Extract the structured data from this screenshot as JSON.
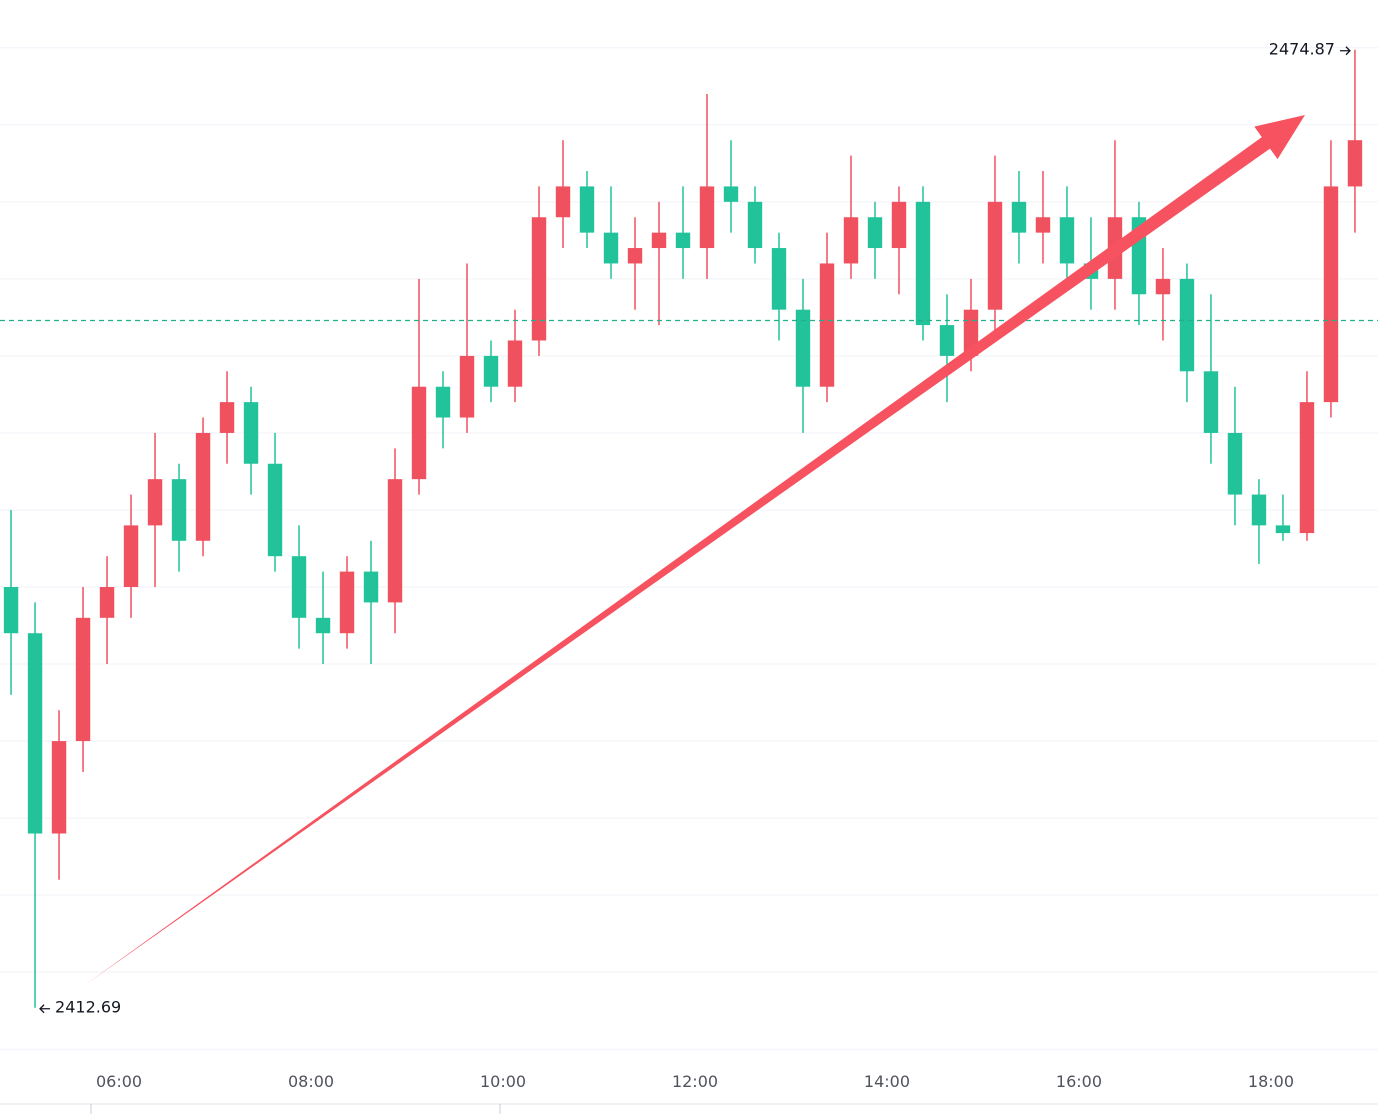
{
  "chart_data": {
    "type": "candlestick",
    "x": [
      4.75,
      5,
      5.25,
      5.5,
      5.75,
      6,
      6.25,
      6.5,
      6.75,
      7,
      7.25,
      7.5,
      7.75,
      8,
      8.25,
      8.5,
      8.75,
      9,
      9.25,
      9.5,
      9.75,
      10,
      10.25,
      10.5,
      10.75,
      11,
      11.25,
      11.5,
      11.75,
      12,
      12.25,
      12.5,
      12.75,
      13,
      13.25,
      13.5,
      13.75,
      14,
      14.25,
      14.5,
      14.75,
      15,
      15.25,
      15.5,
      15.75,
      16,
      16.25,
      16.5,
      16.75,
      17,
      17.25,
      17.5,
      17.75,
      18,
      18.25,
      18.5,
      18.75
    ],
    "open": [
      2440,
      2437,
      2424,
      2430,
      2438,
      2440,
      2444,
      2447,
      2443,
      2450,
      2452,
      2448,
      2442,
      2438,
      2437,
      2441,
      2439,
      2447,
      2453,
      2451,
      2455,
      2453,
      2456,
      2464,
      2466,
      2463,
      2461,
      2462,
      2463,
      2462,
      2466,
      2465,
      2462,
      2458,
      2453,
      2461,
      2464,
      2462,
      2465,
      2457,
      2455,
      2458,
      2465,
      2463,
      2464,
      2461,
      2460,
      2464,
      2459,
      2460,
      2454,
      2450,
      2446,
      2444,
      2443.5,
      2452,
      2466
    ],
    "high": [
      2445,
      2439,
      2432,
      2440,
      2442,
      2446,
      2450,
      2448,
      2451,
      2454,
      2453,
      2450,
      2444,
      2441,
      2442,
      2443,
      2449,
      2460,
      2454,
      2461,
      2456,
      2458,
      2466,
      2469,
      2467,
      2466,
      2464,
      2465,
      2466,
      2472,
      2469,
      2466,
      2463,
      2460,
      2463,
      2468,
      2465,
      2466,
      2466,
      2459,
      2460,
      2468,
      2467,
      2467,
      2466,
      2464,
      2469,
      2465,
      2462,
      2461,
      2459,
      2453,
      2447,
      2446,
      2454,
      2469,
      2474.87
    ],
    "low": [
      2433,
      2412.69,
      2421,
      2428,
      2435,
      2438,
      2440,
      2441,
      2442,
      2448,
      2446,
      2441,
      2436,
      2435,
      2436,
      2435,
      2437,
      2446,
      2449,
      2450,
      2452,
      2452,
      2455,
      2462,
      2462,
      2460,
      2458,
      2457,
      2460,
      2460,
      2463,
      2461,
      2456,
      2450,
      2452,
      2460,
      2460,
      2459,
      2456,
      2452,
      2454,
      2456,
      2461,
      2461,
      2460,
      2458,
      2458,
      2457,
      2456,
      2452,
      2448,
      2444,
      2441.5,
      2443,
      2443,
      2451,
      2463
    ],
    "close": [
      2437,
      2424,
      2430,
      2438,
      2440,
      2444,
      2447,
      2443,
      2450,
      2452,
      2448,
      2442,
      2438,
      2437,
      2441,
      2439,
      2447,
      2453,
      2451,
      2455,
      2453,
      2456,
      2464,
      2466,
      2463,
      2461,
      2462,
      2463,
      2462,
      2466,
      2465,
      2462,
      2458,
      2453,
      2461,
      2464,
      2462,
      2465,
      2457,
      2455,
      2458,
      2465,
      2463,
      2464,
      2461,
      2460,
      2464,
      2459,
      2460,
      2454,
      2450,
      2446,
      2444,
      2443.5,
      2452,
      2466,
      2469
    ],
    "up_color": "#f0515f",
    "down_color": "#22c39a",
    "xlim": [
      4.76,
      19.115
    ],
    "ylim": [
      2409.3,
      2478.1
    ],
    "xticks": [
      {
        "value": 6,
        "label": "06:00"
      },
      {
        "value": 8,
        "label": "08:00"
      },
      {
        "value": 10,
        "label": "10:00"
      },
      {
        "value": 12,
        "label": "12:00"
      },
      {
        "value": 14,
        "label": "14:00"
      },
      {
        "value": 16,
        "label": "16:00"
      },
      {
        "value": 18,
        "label": "18:00"
      }
    ],
    "yticks": [
      2410,
      2415,
      2420,
      2425,
      2430,
      2435,
      2440,
      2445,
      2450,
      2455,
      2460,
      2465,
      2470,
      2475
    ],
    "grid": true,
    "reference_line": 2457.3,
    "reference_color": "#22b08a",
    "high_label": "2474.87",
    "low_label": "2412.69",
    "trend_arrow_color": "#f7525f"
  }
}
